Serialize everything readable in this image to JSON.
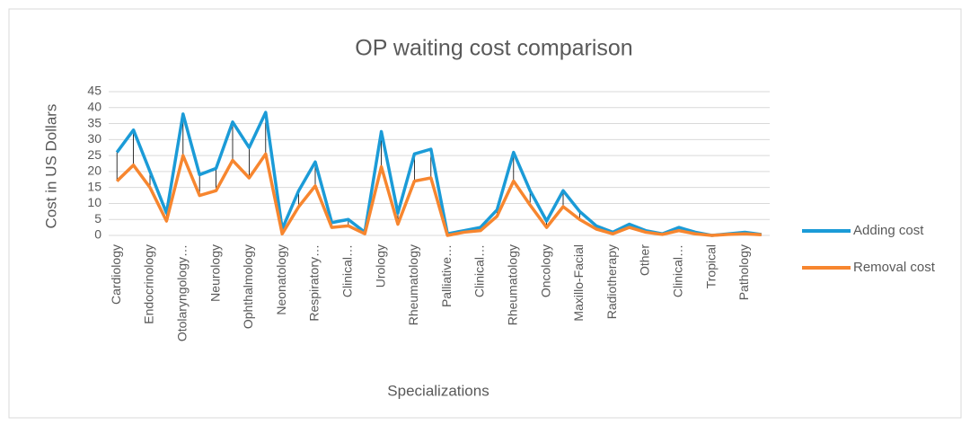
{
  "chart_data": {
    "type": "line",
    "title": "OP waiting cost comparison",
    "x_label": "Specializations",
    "y_label": "Cost in US Dollars",
    "categories": [
      "Cardiology",
      null,
      "Endocrinology",
      null,
      "Otolaryngology…",
      null,
      "Neurology",
      null,
      "Ophthalmology",
      null,
      "Neonatology",
      null,
      "Respiratory…",
      null,
      "Clinical…",
      null,
      "Urology",
      null,
      "Rheumatology",
      null,
      "Palliative…",
      null,
      "Clinical…",
      null,
      "Rheumatology",
      null,
      "Oncology",
      null,
      "Maxillo-Facial",
      null,
      "Radiotherapy",
      null,
      "Other",
      null,
      "Clinical…",
      null,
      "Tropical",
      null,
      "Pathology",
      null
    ],
    "series": [
      {
        "name": "Adding cost",
        "color": "#1b9bd7",
        "values": [
          26,
          33,
          20,
          7,
          38,
          19,
          21,
          35.5,
          27.5,
          38.5,
          2,
          14,
          23,
          4,
          5,
          1,
          32.5,
          7,
          25.5,
          27,
          0.5,
          1.5,
          2.5,
          8,
          26,
          14,
          4.5,
          14,
          7.5,
          3,
          1,
          3.5,
          1.5,
          0.5,
          2.5,
          1,
          0,
          0.5,
          1,
          0.3
        ]
      },
      {
        "name": "Removal cost",
        "color": "#f7862f",
        "values": [
          17,
          22,
          15,
          4.5,
          25,
          12.5,
          14,
          23.5,
          18,
          25.5,
          0.5,
          9,
          15.5,
          2.5,
          3,
          0.5,
          21.5,
          3.5,
          17,
          18,
          0,
          1,
          1.5,
          6,
          17,
          9.5,
          2.5,
          9,
          5,
          2,
          0.5,
          2.5,
          1,
          0.3,
          1.5,
          0.5,
          0,
          0.3,
          0.5,
          0.2
        ]
      }
    ],
    "ylim": [
      0,
      45
    ],
    "yticks": [
      0,
      5,
      10,
      15,
      20,
      25,
      30,
      35,
      40,
      45
    ],
    "grid": true,
    "high_low_lines": true,
    "legend": "right"
  }
}
